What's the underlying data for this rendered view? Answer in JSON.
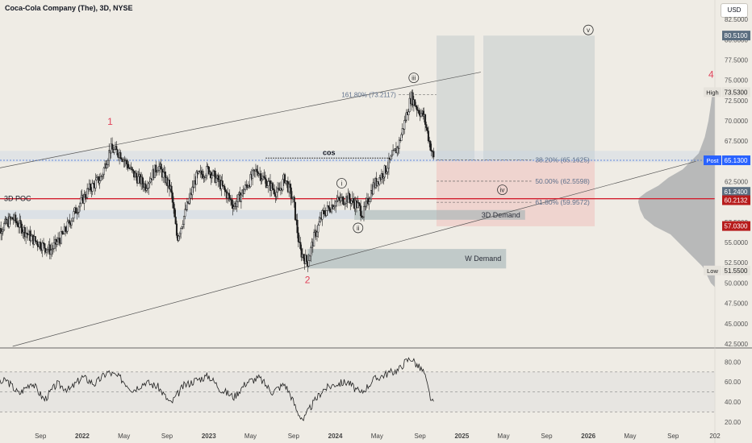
{
  "header": {
    "title": "Coca-Cola Company (The), 3D, NYSE",
    "currency": "USD"
  },
  "colors": {
    "background": "#efece5",
    "candle": "#1e1e1e",
    "poc": "#d3202f",
    "level_line": "#3f6fd8",
    "wave_label_red": "#e0435a",
    "zone_grey": "#9aaeb3",
    "zone_red": "#efb9b4",
    "volume_profile": "#8a8f95",
    "post_badge": "#2962ff",
    "red_badge": "#b71c1c"
  },
  "chart_data": {
    "type": "candlestick",
    "symbol": "KO",
    "interval": "3D",
    "exchange": "NYSE",
    "xlabel": "",
    "ylabel": "",
    "price_ticks": [
      "82.5000",
      "80.0000",
      "77.5000",
      "75.0000",
      "72.5000",
      "70.0000",
      "67.5000",
      "65.0000",
      "62.5000",
      "60.0000",
      "57.5000",
      "55.0000",
      "52.5000",
      "50.0000",
      "47.5000",
      "45.0000",
      "42.5000"
    ],
    "price_range": [
      42.0,
      83.5
    ],
    "time_labels": [
      {
        "label": "Sep",
        "t": 2021.67
      },
      {
        "label": "2022",
        "t": 2022.0
      },
      {
        "label": "May",
        "t": 2022.33
      },
      {
        "label": "Sep",
        "t": 2022.67
      },
      {
        "label": "2023",
        "t": 2023.0
      },
      {
        "label": "May",
        "t": 2023.33
      },
      {
        "label": "Sep",
        "t": 2023.67
      },
      {
        "label": "2024",
        "t": 2024.0
      },
      {
        "label": "May",
        "t": 2024.33
      },
      {
        "label": "Sep",
        "t": 2024.67
      },
      {
        "label": "2025",
        "t": 2025.0
      },
      {
        "label": "May",
        "t": 2025.33
      },
      {
        "label": "Sep",
        "t": 2025.67
      },
      {
        "label": "2026",
        "t": 2026.0
      },
      {
        "label": "May",
        "t": 2026.33
      },
      {
        "label": "Sep",
        "t": 2026.67
      },
      {
        "label": "202",
        "t": 2027.0
      }
    ],
    "price_path": [
      [
        2021.3,
        56.0
      ],
      [
        2021.45,
        58.0
      ],
      [
        2021.6,
        55.5
      ],
      [
        2021.75,
        54.0
      ],
      [
        2021.85,
        56.0
      ],
      [
        2021.95,
        59.0
      ],
      [
        2022.05,
        61.5
      ],
      [
        2022.15,
        63.0
      ],
      [
        2022.22,
        66.5
      ],
      [
        2022.3,
        66.0
      ],
      [
        2022.4,
        63.5
      ],
      [
        2022.5,
        62.0
      ],
      [
        2022.6,
        64.5
      ],
      [
        2022.7,
        61.5
      ],
      [
        2022.75,
        55.5
      ],
      [
        2022.8,
        58.0
      ],
      [
        2022.9,
        63.0
      ],
      [
        2023.0,
        64.0
      ],
      [
        2023.1,
        62.0
      ],
      [
        2023.2,
        59.5
      ],
      [
        2023.3,
        62.0
      ],
      [
        2023.38,
        64.0
      ],
      [
        2023.45,
        62.5
      ],
      [
        2023.55,
        61.0
      ],
      [
        2023.6,
        63.0
      ],
      [
        2023.67,
        60.0
      ],
      [
        2023.72,
        54.0
      ],
      [
        2023.78,
        52.5
      ],
      [
        2023.83,
        55.5
      ],
      [
        2023.9,
        58.5
      ],
      [
        2024.0,
        60.0
      ],
      [
        2024.1,
        60.5
      ],
      [
        2024.18,
        59.5
      ],
      [
        2024.22,
        58.5
      ],
      [
        2024.3,
        62.0
      ],
      [
        2024.4,
        64.0
      ],
      [
        2024.5,
        67.0
      ],
      [
        2024.55,
        70.0
      ],
      [
        2024.6,
        73.0
      ],
      [
        2024.65,
        71.5
      ],
      [
        2024.7,
        70.5
      ],
      [
        2024.75,
        67.0
      ],
      [
        2024.78,
        65.13
      ]
    ],
    "levels": [
      {
        "name": "3D POC",
        "value": 60.4
      },
      {
        "name": "Post",
        "value": 65.13
      }
    ],
    "axis_badges": [
      {
        "label": "80.5100",
        "value": 80.51,
        "style": "grey"
      },
      {
        "label": "High",
        "value": 73.53,
        "style": "light",
        "sub": "73.5300"
      },
      {
        "label": "Post",
        "value": 65.13,
        "style": "blue",
        "sub": "65.1300"
      },
      {
        "label": "61.2400",
        "value": 61.24,
        "style": "grey"
      },
      {
        "label": "60.2132",
        "value": 60.2132,
        "style": "red"
      },
      {
        "label": "57.0300",
        "value": 57.03,
        "style": "red"
      },
      {
        "label": "Low",
        "value": 51.55,
        "style": "light",
        "sub": "51.5500"
      }
    ],
    "fib_levels": [
      {
        "label": "161.80% (73.2117)",
        "value": 73.2117
      },
      {
        "label": "38.20% (65.1625)",
        "value": 65.1625
      },
      {
        "label": "50.00% (62.5598)",
        "value": 62.5598
      },
      {
        "label": "61.80% (59.9572)",
        "value": 59.9572
      }
    ],
    "zones": [
      {
        "label": "3D Demand",
        "t0": 2024.15,
        "t1": 2025.5,
        "p0": 57.8,
        "p1": 59.0
      },
      {
        "label": "W Demand",
        "t0": 2023.78,
        "t1": 2025.35,
        "p0": 51.8,
        "p1": 54.2
      }
    ],
    "wave_labels": [
      {
        "label": "1",
        "t": 2022.22,
        "p": 69.5,
        "style": "red"
      },
      {
        "label": "2",
        "t": 2023.78,
        "p": 50.0,
        "style": "red"
      },
      {
        "label": "4",
        "t": 2026.97,
        "p": 75.3,
        "style": "red"
      },
      {
        "label": "i",
        "t": 2024.05,
        "p": 62.3,
        "style": "circle"
      },
      {
        "label": "ii",
        "t": 2024.18,
        "p": 56.8,
        "style": "circle"
      },
      {
        "label": "iii",
        "t": 2024.62,
        "p": 75.3,
        "style": "circle"
      },
      {
        "label": "iv",
        "t": 2025.32,
        "p": 61.5,
        "style": "circle"
      },
      {
        "label": "v",
        "t": 2026.0,
        "p": 81.2,
        "style": "circle"
      }
    ],
    "annotations": [
      {
        "label": "cos",
        "t": 2023.95,
        "p": 65.8
      },
      {
        "label": "3D POC",
        "t": 2021.3,
        "p": 60.4
      }
    ],
    "rsi": {
      "ticks": [
        "80.00",
        "60.00",
        "40.00",
        "20.00"
      ],
      "range": [
        15,
        90
      ],
      "upper": 70,
      "middle": 50,
      "lower": 30,
      "path": [
        [
          2021.3,
          55
        ],
        [
          2021.4,
          62
        ],
        [
          2021.5,
          48
        ],
        [
          2021.6,
          60
        ],
        [
          2021.7,
          42
        ],
        [
          2021.8,
          58
        ],
        [
          2021.9,
          52
        ],
        [
          2022.0,
          65
        ],
        [
          2022.1,
          58
        ],
        [
          2022.2,
          70
        ],
        [
          2022.3,
          64
        ],
        [
          2022.4,
          52
        ],
        [
          2022.5,
          60
        ],
        [
          2022.6,
          55
        ],
        [
          2022.7,
          38
        ],
        [
          2022.8,
          56
        ],
        [
          2022.9,
          62
        ],
        [
          2023.0,
          66
        ],
        [
          2023.1,
          52
        ],
        [
          2023.2,
          45
        ],
        [
          2023.3,
          60
        ],
        [
          2023.4,
          64
        ],
        [
          2023.5,
          50
        ],
        [
          2023.6,
          58
        ],
        [
          2023.65,
          46
        ],
        [
          2023.7,
          30
        ],
        [
          2023.75,
          22
        ],
        [
          2023.8,
          34
        ],
        [
          2023.9,
          52
        ],
        [
          2024.0,
          58
        ],
        [
          2024.1,
          60
        ],
        [
          2024.2,
          48
        ],
        [
          2024.3,
          62
        ],
        [
          2024.4,
          68
        ],
        [
          2024.5,
          72
        ],
        [
          2024.55,
          80
        ],
        [
          2024.6,
          84
        ],
        [
          2024.65,
          76
        ],
        [
          2024.7,
          70
        ],
        [
          2024.75,
          45
        ],
        [
          2024.78,
          36
        ]
      ]
    }
  }
}
